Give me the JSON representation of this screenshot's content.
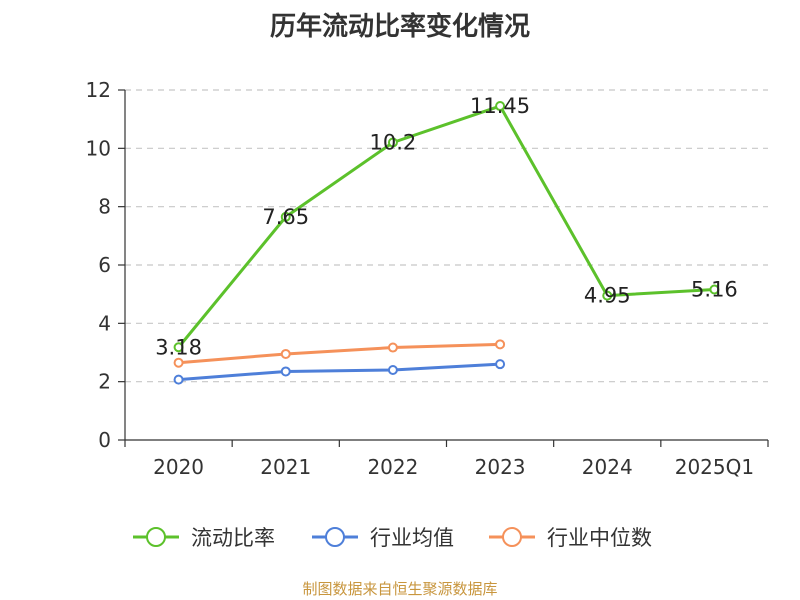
{
  "chart_data": {
    "type": "line",
    "title": "历年流动比率变化情况",
    "categories": [
      "2020",
      "2021",
      "2022",
      "2023",
      "2024",
      "2025Q1"
    ],
    "ylim": [
      0,
      12
    ],
    "yticks": [
      0,
      2,
      4,
      6,
      8,
      10,
      12
    ],
    "grid": true,
    "legend_position": "bottom",
    "series": [
      {
        "name": "流动比率",
        "color": "#5cc12b",
        "values": [
          3.18,
          7.65,
          10.2,
          11.45,
          4.95,
          5.16
        ],
        "labels": [
          "3.18",
          "7.65",
          "10.2",
          "11.45",
          "4.95",
          "5.16"
        ]
      },
      {
        "name": "行业均值",
        "color": "#4e7fd9",
        "values": [
          2.07,
          2.35,
          2.4,
          2.6,
          null,
          null
        ]
      },
      {
        "name": "行业中位数",
        "color": "#f5915a",
        "values": [
          2.65,
          2.95,
          3.17,
          3.28,
          null,
          null
        ]
      }
    ]
  },
  "footer": {
    "source": "制图数据来自恒生聚源数据库"
  }
}
